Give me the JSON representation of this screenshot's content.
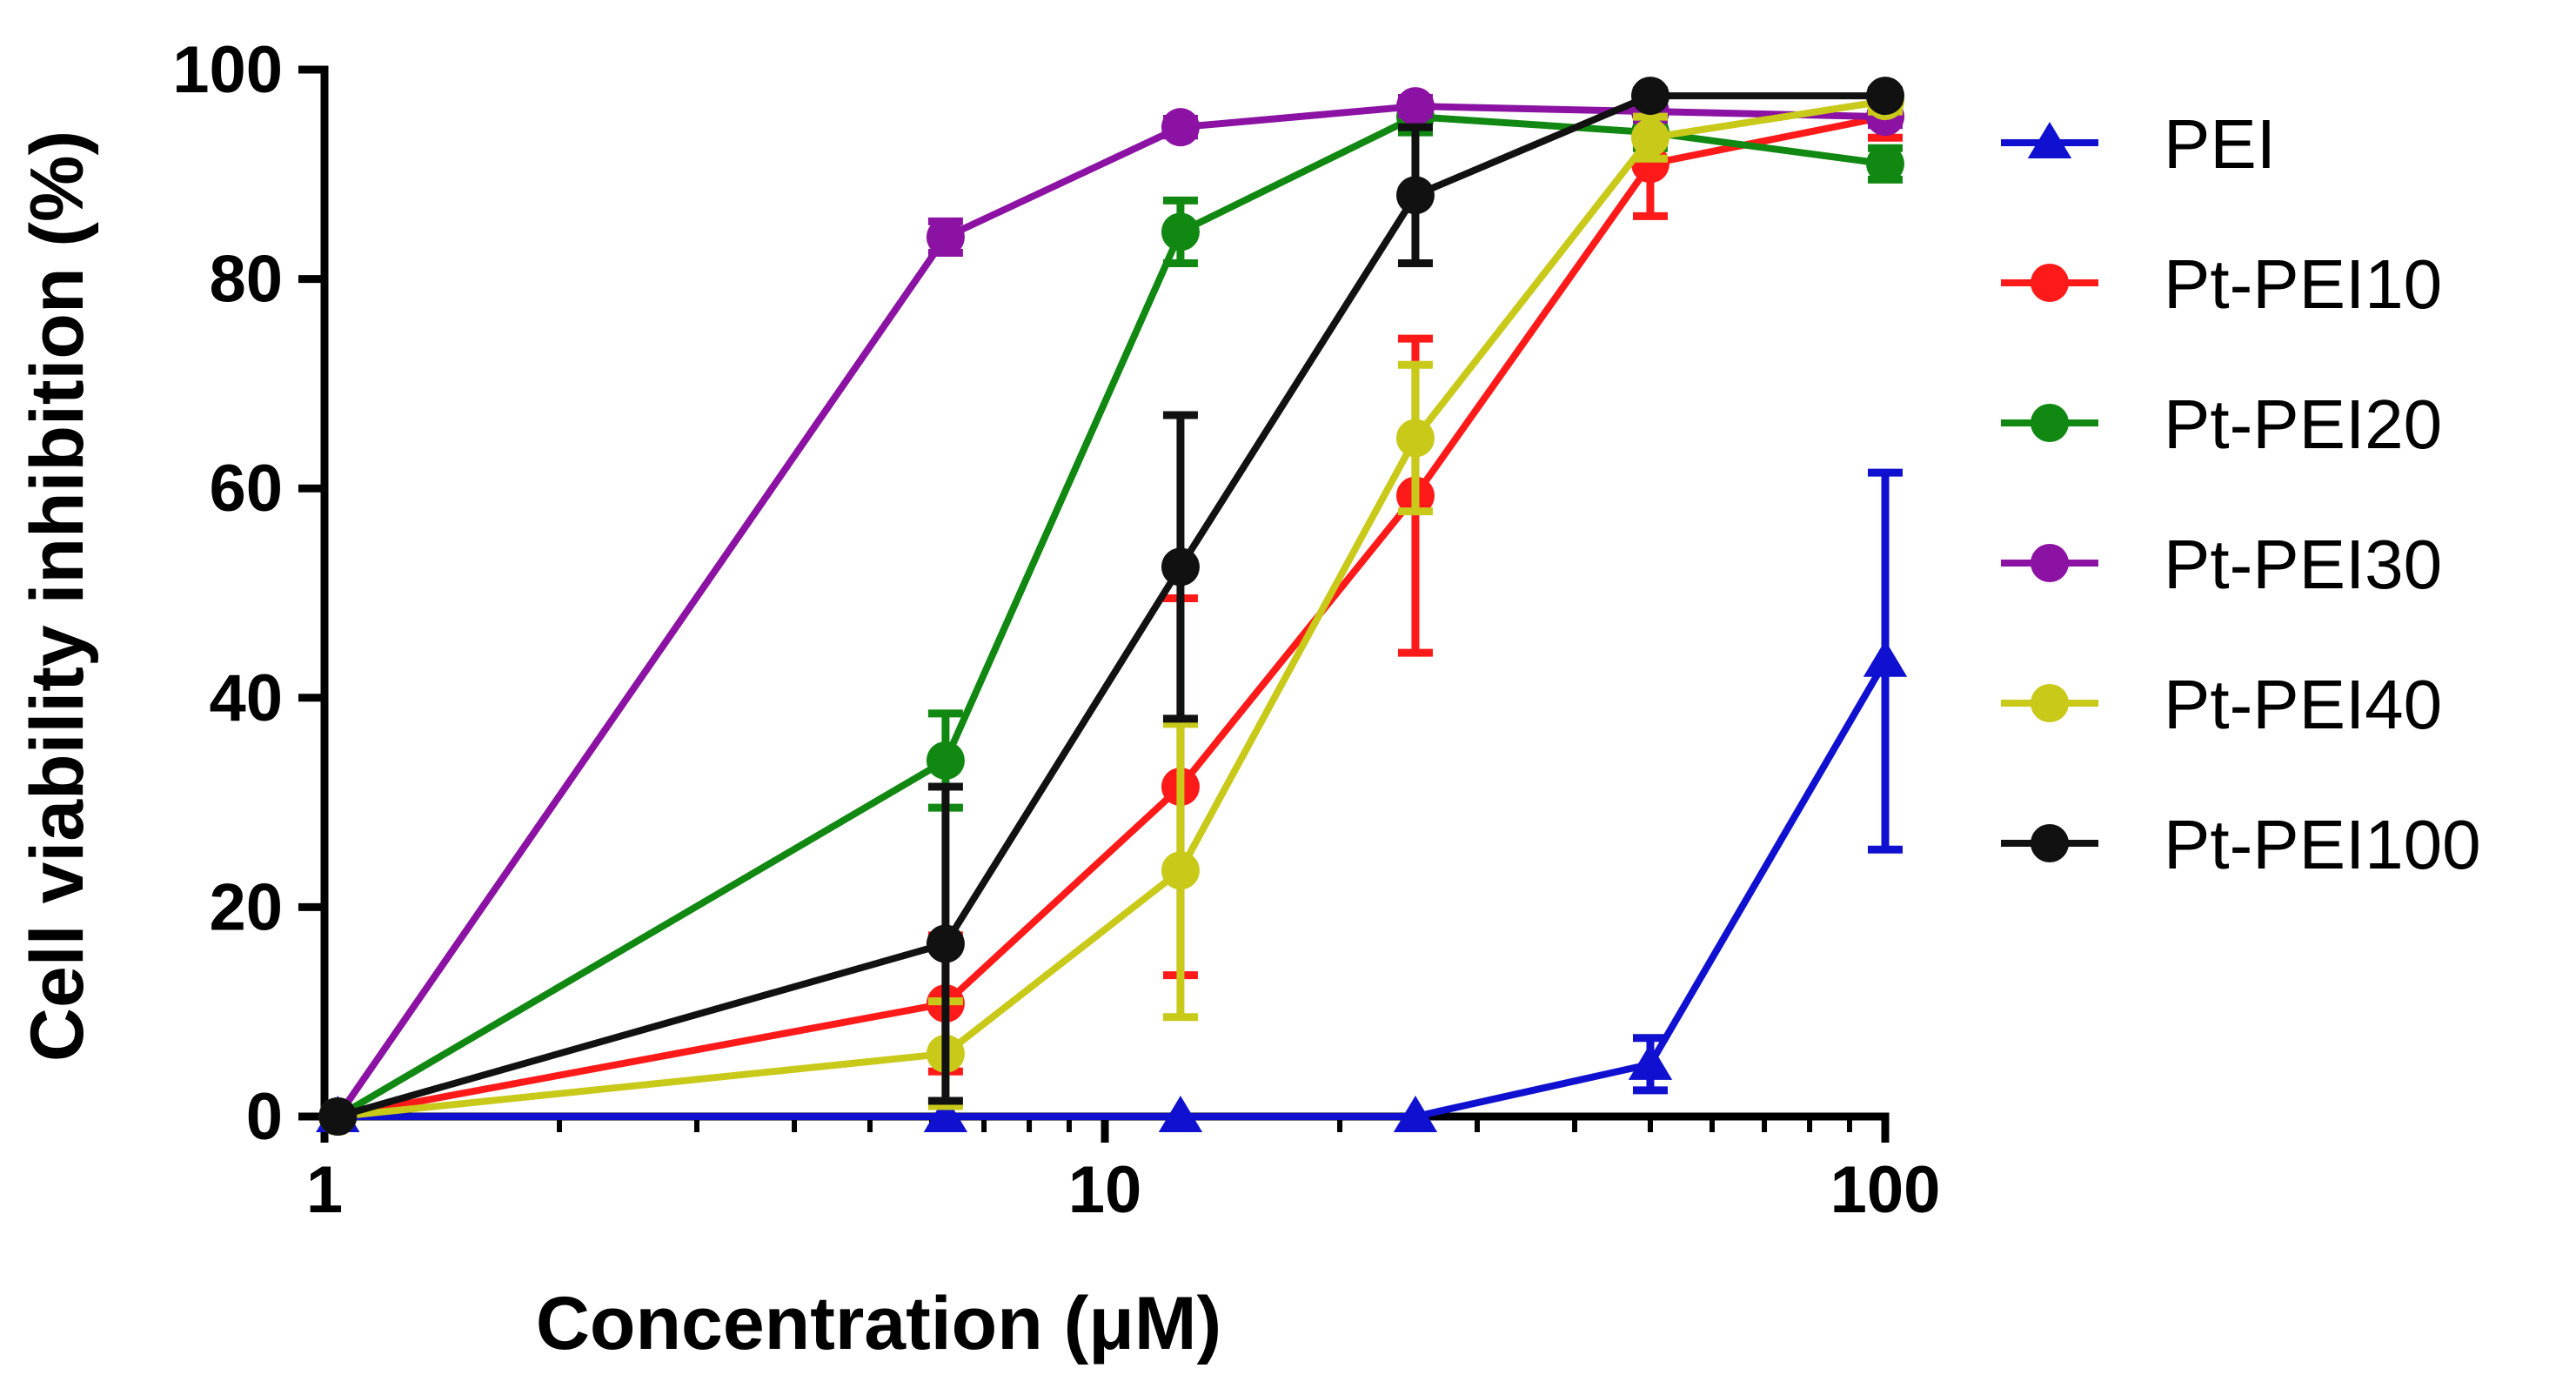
{
  "chart_data": {
    "type": "line",
    "title": "",
    "xlabel": "Concentration (μM)",
    "ylabel": "Cell viability inhibition (%)",
    "xscale": "log",
    "xlim": [
      1,
      100
    ],
    "ylim": [
      0,
      100
    ],
    "xticks": [
      1,
      10,
      100
    ],
    "xtick_labels": [
      "1",
      "10",
      "100"
    ],
    "yticks": [
      0,
      20,
      40,
      60,
      80,
      100
    ],
    "ytick_labels": [
      "0",
      "20",
      "40",
      "60",
      "80",
      "100"
    ],
    "legend_position": "right",
    "x": [
      1.04,
      6.25,
      12.5,
      25,
      50,
      100
    ],
    "series": [
      {
        "name": "PEI",
        "color": "#1010d0",
        "marker": "triangle",
        "values": [
          0,
          0,
          0,
          0,
          5,
          43.5
        ],
        "errors": [
          0,
          0,
          0,
          0,
          2.5,
          18
        ]
      },
      {
        "name": "Pt-PEI10",
        "color": "#ff1a1a",
        "marker": "circle",
        "values": [
          0,
          10.8,
          31.5,
          59.3,
          91,
          95.5
        ],
        "errors": [
          0,
          6.5,
          18,
          15,
          5,
          2
        ]
      },
      {
        "name": "Pt-PEI20",
        "color": "#118811",
        "marker": "circle",
        "values": [
          0,
          34,
          84.5,
          95.5,
          94,
          91
        ],
        "errors": [
          0,
          4.5,
          3,
          1.5,
          1.5,
          1.5
        ]
      },
      {
        "name": "Pt-PEI30",
        "color": "#8b12a3",
        "marker": "circle",
        "values": [
          0,
          84,
          94.5,
          96.5,
          96,
          95.5
        ],
        "errors": [
          0,
          1.5,
          0.8,
          0.8,
          0.8,
          0.8
        ]
      },
      {
        "name": "Pt-PEI40",
        "color": "#c9c91a",
        "marker": "circle",
        "values": [
          0,
          6,
          23.5,
          64.8,
          93.5,
          97
        ],
        "errors": [
          0,
          5,
          14,
          7,
          2,
          1
        ]
      },
      {
        "name": "Pt-PEI100",
        "color": "#111111",
        "marker": "circle",
        "values": [
          0,
          16.5,
          52.5,
          88,
          97.5,
          97.5
        ],
        "errors": [
          0,
          15,
          14.5,
          6.5,
          0.5,
          0.5
        ]
      }
    ]
  }
}
